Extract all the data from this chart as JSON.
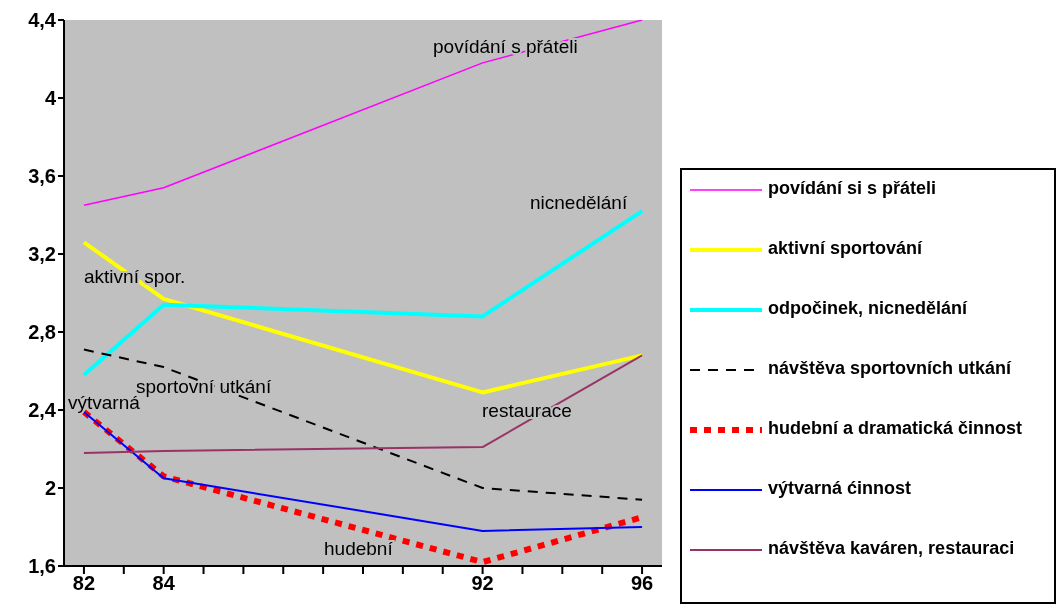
{
  "chart_data": {
    "type": "line",
    "x": [
      82,
      84,
      92,
      96
    ],
    "xlim": [
      81.5,
      96.5
    ],
    "xticks": [
      {
        "value": 82,
        "label": "82"
      },
      {
        "value": 83,
        "label": null
      },
      {
        "value": 84,
        "label": "84"
      },
      {
        "value": 85,
        "label": null
      },
      {
        "value": 86,
        "label": null
      },
      {
        "value": 87,
        "label": null
      },
      {
        "value": 88,
        "label": null
      },
      {
        "value": 89,
        "label": null
      },
      {
        "value": 90,
        "label": null
      },
      {
        "value": 91,
        "label": null
      },
      {
        "value": 92,
        "label": "92"
      },
      {
        "value": 93,
        "label": null
      },
      {
        "value": 94,
        "label": null
      },
      {
        "value": 95,
        "label": null
      },
      {
        "value": 96,
        "label": "96"
      }
    ],
    "ylim": [
      1.6,
      4.4
    ],
    "yticks": [
      {
        "value": 1.6,
        "label": "1,6"
      },
      {
        "value": 2,
        "label": "2"
      },
      {
        "value": 2.4,
        "label": "2,4"
      },
      {
        "value": 2.8,
        "label": "2,8"
      },
      {
        "value": 3.2,
        "label": "3,2"
      },
      {
        "value": 3.6,
        "label": "3,6"
      },
      {
        "value": 4,
        "label": "4"
      },
      {
        "value": 4.4,
        "label": "4,4"
      }
    ],
    "grid": false,
    "legend": "right",
    "marker": "none",
    "series": [
      {
        "name": "povídání si s přáteli",
        "color": "#ff00ff",
        "values": [
          3.45,
          3.54,
          4.18,
          4.4
        ]
      },
      {
        "name": "aktivní sportování",
        "color": "#ffff00",
        "values": [
          3.26,
          2.97,
          2.49,
          2.68
        ]
      },
      {
        "name": "odpočinek,  nicnedělání",
        "color": "#00ffff",
        "values": [
          2.58,
          2.94,
          2.88,
          3.42
        ]
      },
      {
        "name": "návštěva sportovních utkání",
        "color": "#000000",
        "values": [
          2.71,
          2.62,
          2.0,
          1.94
        ],
        "line_style": "dashed"
      },
      {
        "name": "hudební a dramatická činnost",
        "color": "#ff0000",
        "values": [
          2.39,
          2.06,
          1.62,
          1.85
        ],
        "line_style": "dashed"
      },
      {
        "name": "výtvarná ćinnost",
        "color": "#0000ff",
        "values": [
          2.39,
          2.05,
          1.78,
          1.8
        ]
      },
      {
        "name": "návštěva kaváren, restauraci",
        "color": "#993366",
        "values": [
          2.18,
          2.19,
          2.21,
          2.68
        ]
      }
    ],
    "annotations": [
      "povídání s přáteli",
      "nicnedělání",
      "aktivní spor.",
      "sportovní utkání",
      "výtvarná",
      "restaurace",
      "hudební"
    ]
  }
}
